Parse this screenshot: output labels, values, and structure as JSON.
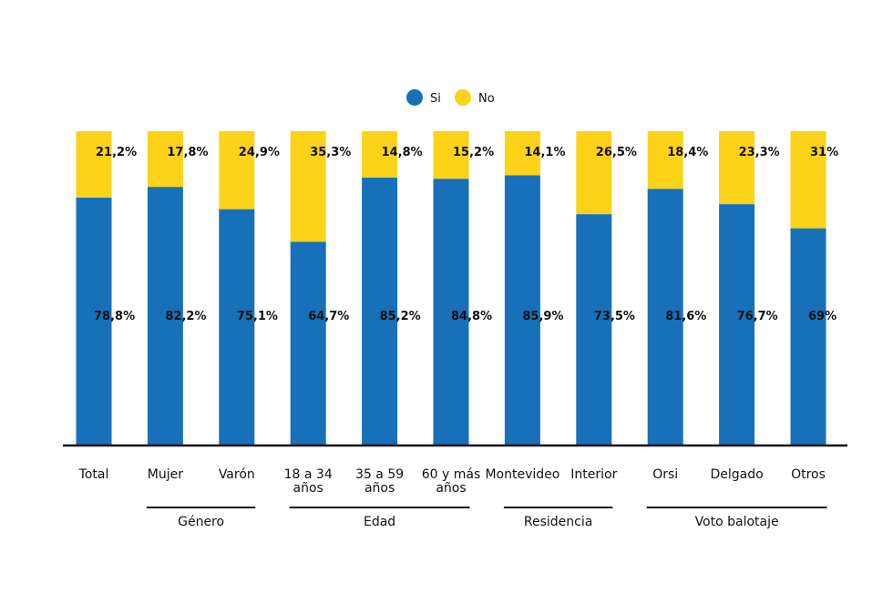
{
  "chart_data": {
    "type": "bar",
    "stacked": true,
    "categories": [
      [
        "Total"
      ],
      [
        "Mujer"
      ],
      [
        "Varón"
      ],
      [
        "18 a 34",
        "años"
      ],
      [
        "35 a 59",
        "años"
      ],
      [
        "60 y más",
        "años"
      ],
      [
        "Montevideo"
      ],
      [
        "Interior"
      ],
      [
        "Orsi"
      ],
      [
        "Delgado"
      ],
      [
        "Otros"
      ]
    ],
    "series": [
      {
        "name": "Si",
        "color": "#1870b8",
        "values": [
          78.8,
          82.2,
          75.1,
          64.7,
          85.2,
          84.8,
          85.9,
          73.5,
          81.6,
          76.7,
          69
        ],
        "labels": [
          "78,8%",
          "82,2%",
          "75,1%",
          "64,7%",
          "85,2%",
          "84,8%",
          "85,9%",
          "73,5%",
          "81,6%",
          "76,7%",
          "69%"
        ]
      },
      {
        "name": "No",
        "color": "#fcd319",
        "values": [
          21.2,
          17.8,
          24.9,
          35.3,
          14.8,
          15.2,
          14.1,
          26.5,
          18.4,
          23.3,
          31
        ],
        "labels": [
          "21,2%",
          "17,8%",
          "24,9%",
          "35,3%",
          "14,8%",
          "15,2%",
          "14,1%",
          "26,5%",
          "18,4%",
          "23,3%",
          "31%"
        ]
      }
    ],
    "groups": [
      {
        "label": "Género",
        "from": 1,
        "to": 2
      },
      {
        "label": "Edad",
        "from": 3,
        "to": 5
      },
      {
        "label": "Residencia",
        "from": 6,
        "to": 7
      },
      {
        "label": "Voto balotaje",
        "from": 8,
        "to": 10
      }
    ],
    "ylim": [
      0,
      100
    ],
    "legend_position": "top-center",
    "title": "",
    "xlabel": "",
    "ylabel": "",
    "grid": false
  }
}
